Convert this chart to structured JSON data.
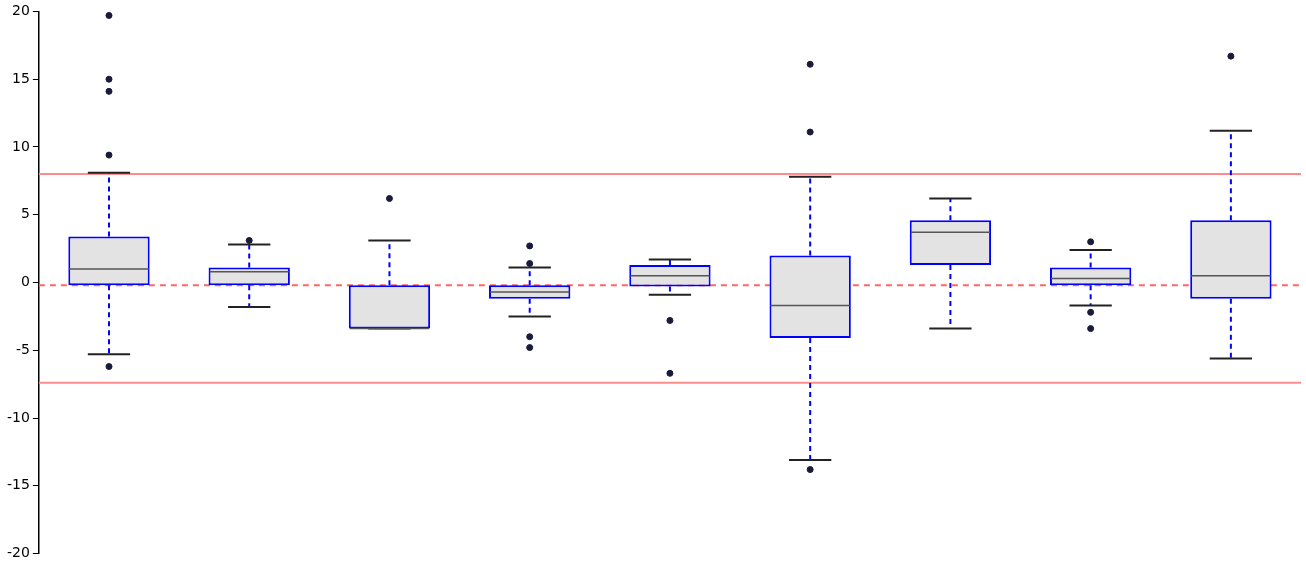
{
  "chart_data": {
    "type": "box",
    "categories": [
      null,
      null,
      null,
      null,
      null,
      null,
      null,
      null,
      null
    ],
    "series": [
      {
        "color": "#0000ff",
        "boxes": [
          {
            "low": -5.3,
            "q1": -0.2,
            "median": 1.0,
            "q3": 3.4,
            "high": 8.1,
            "outliers": [
              19.7,
              15.0,
              14.1,
              9.4,
              -6.2
            ]
          },
          {
            "low": -1.8,
            "q1": -0.2,
            "median": 0.8,
            "q3": 1.1,
            "high": 2.8,
            "outliers": [
              3.1
            ]
          },
          {
            "low": -3.4,
            "q1": -3.4,
            "median": -3.4,
            "q3": -0.2,
            "high": 3.1,
            "outliers": [
              6.2
            ]
          },
          {
            "low": -2.5,
            "q1": -1.2,
            "median": -0.7,
            "q3": -0.2,
            "high": 1.1,
            "outliers": [
              2.7,
              1.4,
              -4.0,
              -4.8
            ]
          },
          {
            "low": -0.9,
            "q1": -0.3,
            "median": 0.5,
            "q3": 1.3,
            "high": 1.7,
            "outliers": [
              -2.8,
              -6.7
            ]
          },
          {
            "low": -13.1,
            "q1": -4.1,
            "median": -1.7,
            "q3": 2.0,
            "high": 7.8,
            "outliers": [
              16.1,
              11.1,
              -13.8
            ]
          },
          {
            "low": -3.4,
            "q1": 1.3,
            "median": 3.7,
            "q3": 4.6,
            "high": 6.2
          },
          {
            "low": -1.7,
            "q1": -0.2,
            "median": 0.3,
            "q3": 1.1,
            "high": 2.4,
            "outliers": [
              3.0,
              -2.2,
              -3.4
            ]
          },
          {
            "low": -5.6,
            "q1": -1.2,
            "median": 0.5,
            "q3": 4.6,
            "high": 11.2,
            "outliers": [
              16.7
            ]
          }
        ]
      }
    ],
    "ylim": [
      -20,
      20
    ],
    "yticks": [
      -20,
      -15,
      -10,
      -5,
      0,
      5,
      10,
      15,
      20
    ],
    "ref_lines": [
      {
        "axis": "y",
        "value": 8.0,
        "color": "#ff8c8c",
        "line_style": "solid"
      },
      {
        "axis": "y",
        "value": -0.2,
        "color": "#ff6666",
        "line_style": "dashed"
      },
      {
        "axis": "y",
        "value": -7.4,
        "color": "#ff8c8c",
        "line_style": "solid"
      }
    ],
    "tick_labels": "y",
    "grid": false,
    "legend": false
  }
}
